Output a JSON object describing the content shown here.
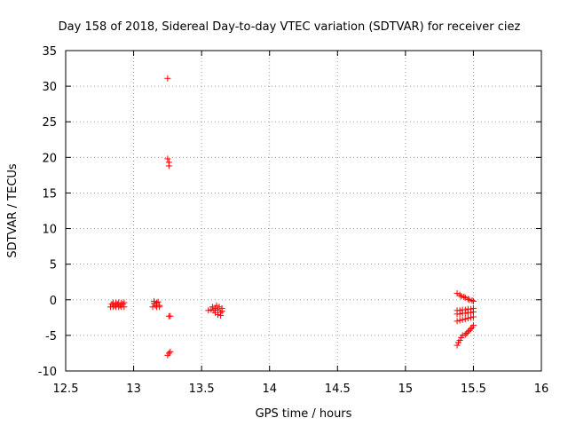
{
  "chart_data": {
    "type": "scatter",
    "title": "Day 158 of 2018, Sidereal Day-to-day VTEC variation (SDTVAR) for receiver ciez",
    "xlabel": "GPS time / hours",
    "ylabel": "SDTVAR / TECUs",
    "xlim": [
      12.5,
      16
    ],
    "ylim": [
      -10,
      35
    ],
    "xticks": [
      12.5,
      13,
      13.5,
      14,
      14.5,
      15,
      15.5,
      16
    ],
    "xtick_labels": [
      "12.5",
      "13",
      "13.5",
      "14",
      "14.5",
      "15",
      "15.5",
      "16"
    ],
    "yticks": [
      -10,
      -5,
      0,
      5,
      10,
      15,
      20,
      25,
      30,
      35
    ],
    "ytick_labels": [
      "-10",
      "-5",
      "0",
      "5",
      "10",
      "15",
      "20",
      "25",
      "30",
      "35"
    ],
    "grid": true,
    "marker_color": "#ff0000",
    "grid_color": "#a0a0a0",
    "series": [
      {
        "name": "ciez",
        "marker": "+",
        "points": [
          [
            12.83,
            -1.0
          ],
          [
            12.84,
            -0.6
          ],
          [
            12.85,
            -0.4
          ],
          [
            12.85,
            -1.0
          ],
          [
            12.86,
            -0.8
          ],
          [
            12.87,
            -0.4
          ],
          [
            12.87,
            -1.0
          ],
          [
            12.88,
            -0.6
          ],
          [
            12.89,
            -0.4
          ],
          [
            12.89,
            -1.0
          ],
          [
            12.9,
            -0.8
          ],
          [
            12.91,
            -0.4
          ],
          [
            12.91,
            -1.0
          ],
          [
            12.92,
            -0.6
          ],
          [
            12.93,
            -0.4
          ],
          [
            12.93,
            -1.0
          ],
          [
            13.14,
            -1.0
          ],
          [
            13.15,
            -0.5
          ],
          [
            13.15,
            -0.2
          ],
          [
            13.16,
            -0.8
          ],
          [
            13.17,
            -0.4
          ],
          [
            13.17,
            -1.0
          ],
          [
            13.18,
            -0.3
          ],
          [
            13.19,
            -0.8
          ],
          [
            13.19,
            -1.0
          ],
          [
            13.25,
            31.1
          ],
          [
            13.25,
            19.8
          ],
          [
            13.26,
            19.3
          ],
          [
            13.26,
            18.8
          ],
          [
            13.26,
            -2.3
          ],
          [
            13.27,
            -2.3
          ],
          [
            13.25,
            -7.8
          ],
          [
            13.26,
            -7.5
          ],
          [
            13.27,
            -7.3
          ],
          [
            13.55,
            -1.5
          ],
          [
            13.57,
            -1.4
          ],
          [
            13.58,
            -1.0
          ],
          [
            13.59,
            -1.5
          ],
          [
            13.6,
            -1.2
          ],
          [
            13.6,
            -1.8
          ],
          [
            13.61,
            -0.8
          ],
          [
            13.62,
            -1.4
          ],
          [
            13.62,
            -2.1
          ],
          [
            13.63,
            -1.0
          ],
          [
            13.64,
            -1.8
          ],
          [
            13.64,
            -2.2
          ],
          [
            13.65,
            -1.2
          ],
          [
            13.65,
            -1.6
          ],
          [
            15.38,
            0.9
          ],
          [
            15.4,
            0.7
          ],
          [
            15.41,
            0.5
          ],
          [
            15.43,
            0.4
          ],
          [
            15.44,
            0.3
          ],
          [
            15.46,
            0.1
          ],
          [
            15.47,
            0.0
          ],
          [
            15.49,
            -0.1
          ],
          [
            15.5,
            -0.2
          ],
          [
            15.38,
            -1.5
          ],
          [
            15.4,
            -1.5
          ],
          [
            15.42,
            -1.4
          ],
          [
            15.44,
            -1.4
          ],
          [
            15.46,
            -1.3
          ],
          [
            15.48,
            -1.3
          ],
          [
            15.5,
            -1.2
          ],
          [
            15.38,
            -2.0
          ],
          [
            15.4,
            -2.0
          ],
          [
            15.42,
            -1.9
          ],
          [
            15.44,
            -1.9
          ],
          [
            15.46,
            -1.8
          ],
          [
            15.48,
            -1.8
          ],
          [
            15.5,
            -1.7
          ],
          [
            15.38,
            -3.0
          ],
          [
            15.4,
            -2.9
          ],
          [
            15.42,
            -2.8
          ],
          [
            15.44,
            -2.7
          ],
          [
            15.46,
            -2.6
          ],
          [
            15.48,
            -2.5
          ],
          [
            15.5,
            -2.4
          ],
          [
            15.38,
            -6.4
          ],
          [
            15.39,
            -6.0
          ],
          [
            15.4,
            -5.7
          ],
          [
            15.41,
            -5.3
          ],
          [
            15.42,
            -5.0
          ],
          [
            15.44,
            -4.9
          ],
          [
            15.45,
            -4.7
          ],
          [
            15.46,
            -4.5
          ],
          [
            15.47,
            -4.3
          ],
          [
            15.48,
            -4.1
          ],
          [
            15.49,
            -3.9
          ],
          [
            15.5,
            -3.6
          ]
        ]
      }
    ]
  }
}
